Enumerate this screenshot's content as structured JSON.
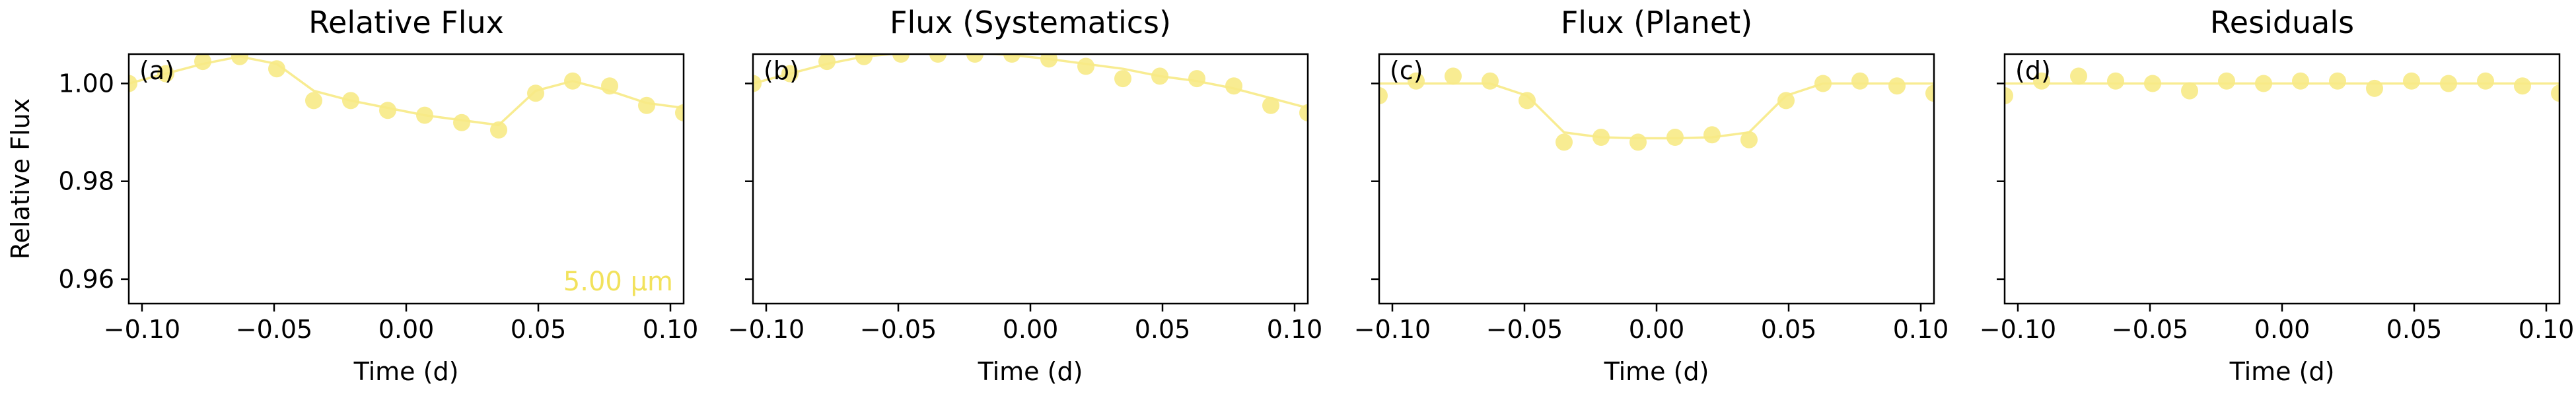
{
  "chart_data": [
    {
      "type": "scatter",
      "panel_label": "(a)",
      "title": "Relative Flux",
      "xlabel": "Time (d)",
      "ylabel": "Relative Flux",
      "xlim": [
        -0.105,
        0.105
      ],
      "ylim": [
        0.955,
        1.006
      ],
      "xticks": [
        -0.1,
        -0.05,
        0.0,
        0.05,
        0.1
      ],
      "xtick_labels": [
        "−0.10",
        "−0.05",
        "0.00",
        "0.05",
        "0.10"
      ],
      "yticks": [
        0.96,
        0.98,
        1.0
      ],
      "ytick_labels": [
        "0.96",
        "0.98",
        "1.00"
      ],
      "show_ytick_labels": true,
      "annotation": "5.00 μm",
      "series": [
        {
          "x": [
            -0.105,
            -0.091,
            -0.077,
            -0.063,
            -0.049,
            -0.035,
            -0.021,
            -0.007,
            0.007,
            0.021,
            0.035,
            0.049,
            0.063,
            0.077,
            0.091,
            0.105
          ],
          "y": [
            1.0,
            1.002,
            1.0045,
            1.0055,
            1.003,
            0.9965,
            0.9965,
            0.9945,
            0.9935,
            0.992,
            0.9905,
            0.998,
            1.0005,
            0.9995,
            0.9955,
            0.994
          ],
          "model": [
            1.0,
            1.002,
            1.004,
            1.0055,
            1.004,
            0.9985,
            0.9965,
            0.995,
            0.9935,
            0.9925,
            0.9915,
            0.9985,
            1.0005,
            0.9985,
            0.996,
            0.995
          ]
        }
      ]
    },
    {
      "type": "scatter",
      "panel_label": "(b)",
      "title": "Flux (Systematics)",
      "xlabel": "Time (d)",
      "ylabel": "",
      "xlim": [
        -0.105,
        0.105
      ],
      "ylim": [
        0.955,
        1.006
      ],
      "xticks": [
        -0.1,
        -0.05,
        0.0,
        0.05,
        0.1
      ],
      "xtick_labels": [
        "−0.10",
        "−0.05",
        "0.00",
        "0.05",
        "0.10"
      ],
      "yticks": [
        0.96,
        0.98,
        1.0
      ],
      "ytick_labels": [
        "",
        "",
        ""
      ],
      "show_ytick_labels": false,
      "annotation": "",
      "series": [
        {
          "x": [
            -0.105,
            -0.091,
            -0.077,
            -0.063,
            -0.049,
            -0.035,
            -0.021,
            -0.007,
            0.007,
            0.021,
            0.035,
            0.049,
            0.063,
            0.077,
            0.091,
            0.105
          ],
          "y": [
            1.0,
            1.002,
            1.0045,
            1.0055,
            1.006,
            1.006,
            1.006,
            1.006,
            1.005,
            1.0035,
            1.001,
            1.0015,
            1.001,
            0.9995,
            0.9955,
            0.994
          ],
          "model": [
            1.0,
            1.002,
            1.004,
            1.0055,
            1.0062,
            1.0065,
            1.0063,
            1.0058,
            1.005,
            1.004,
            1.003,
            1.0015,
            1.0005,
            0.999,
            0.997,
            0.995
          ]
        }
      ]
    },
    {
      "type": "scatter",
      "panel_label": "(c)",
      "title": "Flux (Planet)",
      "xlabel": "Time (d)",
      "ylabel": "",
      "xlim": [
        -0.105,
        0.105
      ],
      "ylim": [
        0.955,
        1.006
      ],
      "xticks": [
        -0.1,
        -0.05,
        0.0,
        0.05,
        0.1
      ],
      "xtick_labels": [
        "−0.10",
        "−0.05",
        "0.00",
        "0.05",
        "0.10"
      ],
      "yticks": [
        0.96,
        0.98,
        1.0
      ],
      "ytick_labels": [
        "",
        "",
        ""
      ],
      "show_ytick_labels": false,
      "annotation": "",
      "series": [
        {
          "x": [
            -0.105,
            -0.091,
            -0.077,
            -0.063,
            -0.049,
            -0.035,
            -0.021,
            -0.007,
            0.007,
            0.021,
            0.035,
            0.049,
            0.063,
            0.077,
            0.091,
            0.105
          ],
          "y": [
            0.9975,
            1.0005,
            1.0015,
            1.0005,
            0.9965,
            0.988,
            0.989,
            0.988,
            0.989,
            0.9895,
            0.9885,
            0.9965,
            1.0,
            1.0005,
            0.9995,
            0.998
          ],
          "model": [
            1.0,
            1.0,
            1.0,
            1.0,
            0.9975,
            0.99,
            0.989,
            0.9888,
            0.9888,
            0.989,
            0.99,
            0.9975,
            1.0,
            1.0,
            1.0,
            1.0
          ]
        }
      ]
    },
    {
      "type": "scatter",
      "panel_label": "(d)",
      "title": "Residuals",
      "xlabel": "Time (d)",
      "ylabel": "",
      "xlim": [
        -0.105,
        0.105
      ],
      "ylim": [
        0.955,
        1.006
      ],
      "xticks": [
        -0.1,
        -0.05,
        0.0,
        0.05,
        0.1
      ],
      "xtick_labels": [
        "−0.10",
        "−0.05",
        "0.00",
        "0.05",
        "0.10"
      ],
      "yticks": [
        0.96,
        0.98,
        1.0
      ],
      "ytick_labels": [
        "",
        "",
        ""
      ],
      "show_ytick_labels": false,
      "annotation": "",
      "series": [
        {
          "x": [
            -0.105,
            -0.091,
            -0.077,
            -0.063,
            -0.049,
            -0.035,
            -0.021,
            -0.007,
            0.007,
            0.021,
            0.035,
            0.049,
            0.063,
            0.077,
            0.091,
            0.105
          ],
          "y": [
            0.9975,
            1.0005,
            1.0015,
            1.0005,
            1.0,
            0.9985,
            1.0005,
            1.0,
            1.0005,
            1.0005,
            0.999,
            1.0005,
            1.0,
            1.0005,
            0.9995,
            0.998
          ],
          "model": [
            1.0,
            1.0,
            1.0,
            1.0,
            1.0,
            1.0,
            1.0,
            1.0,
            1.0,
            1.0,
            1.0,
            1.0,
            1.0,
            1.0,
            1.0,
            1.0
          ]
        }
      ]
    }
  ],
  "colors": {
    "marker": "#f7ea86",
    "line": "#f7ea86",
    "annotation": "#f2e25c",
    "axes": "#000000"
  }
}
